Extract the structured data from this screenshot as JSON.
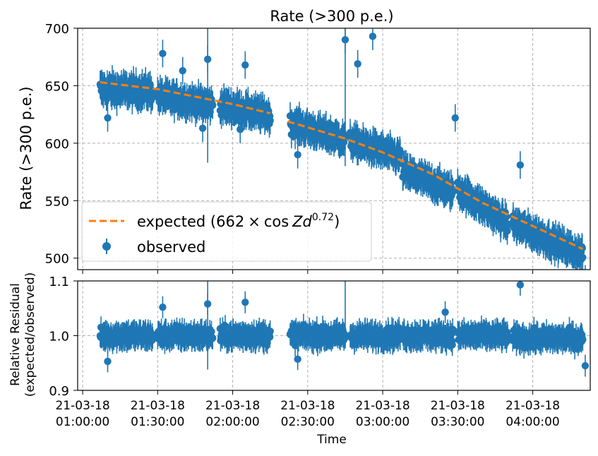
{
  "chart_data": [
    {
      "type": "scatter",
      "title": "Rate (>300 p.e.)",
      "xlabel": "",
      "ylabel": "Rate (>300 p.e.)",
      "ylim": [
        490,
        700
      ],
      "yticks": [
        500,
        550,
        600,
        650,
        700
      ],
      "xlim": [
        "21-03-18 00:58:00",
        "21-03-18 04:23:00"
      ],
      "grid": true,
      "legend_position": "lower-left",
      "series": [
        {
          "name": "expected (662 × cos Zd^0.72)",
          "style": "dashed-line",
          "color": "#ff7f0e",
          "x": [
            "21-03-18 01:00:00",
            "21-03-18 01:20:00",
            "21-03-18 01:40:00",
            "21-03-18 02:00:00",
            "21-03-18 02:20:00",
            "21-03-18 02:40:00",
            "21-03-18 03:00:00",
            "21-03-18 03:20:00",
            "21-03-18 03:40:00",
            "21-03-18 04:00:00"
          ],
          "y": [
            653,
            649,
            641,
            633,
            623,
            612,
            597,
            573,
            548,
            520
          ],
          "segments": [
            {
              "x": [
                "21-03-18 01:07:00",
                "21-03-18 01:30:00",
                "21-03-18 02:00:00",
                "21-03-18 02:15:00"
              ],
              "y": [
                653,
                647,
                634,
                626
              ]
            },
            {
              "x": [
                "21-03-18 02:22:00",
                "21-03-18 02:45:00",
                "21-03-18 03:00:00",
                "21-03-18 03:20:00",
                "21-03-18 03:40:00",
                "21-03-18 04:00:00",
                "21-03-18 04:20:00"
              ],
              "y": [
                619,
                604,
                592,
                573,
                548,
                528,
                508
              ]
            }
          ]
        },
        {
          "name": "observed",
          "style": "markers-with-errorbars",
          "color": "#1f77b4",
          "clusters": [
            {
              "x_start": "21-03-18 01:07:00",
              "x_end": "21-03-18 01:28:00",
              "y_center_start": 647,
              "y_center_end": 645,
              "spread": 18
            },
            {
              "x_start": "21-03-18 01:30:00",
              "x_end": "21-03-18 01:52:00",
              "y_center_start": 641,
              "y_center_end": 633,
              "spread": 16
            },
            {
              "x_start": "21-03-18 01:55:00",
              "x_end": "21-03-18 02:15:00",
              "y_center_start": 633,
              "y_center_end": 624,
              "spread": 16
            },
            {
              "x_start": "21-03-18 02:23:00",
              "x_end": "21-03-18 02:45:00",
              "y_center_start": 617,
              "y_center_end": 603,
              "spread": 16
            },
            {
              "x_start": "21-03-18 02:47:00",
              "x_end": "21-03-18 03:07:00",
              "y_center_start": 602,
              "y_center_end": 588,
              "spread": 16
            },
            {
              "x_start": "21-03-18 03:08:00",
              "x_end": "21-03-18 03:28:00",
              "y_center_start": 576,
              "y_center_end": 558,
              "spread": 16
            },
            {
              "x_start": "21-03-18 03:30:00",
              "x_end": "21-03-18 03:50:00",
              "y_center_start": 560,
              "y_center_end": 530,
              "spread": 16
            },
            {
              "x_start": "21-03-18 03:52:00",
              "x_end": "21-03-18 04:20:00",
              "y_center_start": 530,
              "y_center_end": 503,
              "spread": 16
            }
          ],
          "outliers": [
            {
              "x": "21-03-18 01:10:00",
              "y": 622
            },
            {
              "x": "21-03-18 01:32:00",
              "y": 678
            },
            {
              "x": "21-03-18 01:40:00",
              "y": 663
            },
            {
              "x": "21-03-18 01:50:00",
              "y": 673
            },
            {
              "x": "21-03-18 01:48:00",
              "y": 613
            },
            {
              "x": "21-03-18 02:05:00",
              "y": 668
            },
            {
              "x": "21-03-18 02:03:00",
              "y": 612
            },
            {
              "x": "21-03-18 02:26:00",
              "y": 590
            },
            {
              "x": "21-03-18 02:45:00",
              "y": 690
            },
            {
              "x": "21-03-18 02:50:00",
              "y": 669
            },
            {
              "x": "21-03-18 02:56:00",
              "y": 693
            },
            {
              "x": "21-03-18 03:29:00",
              "y": 622
            },
            {
              "x": "21-03-18 03:55:00",
              "y": 581
            },
            {
              "x": "21-03-18 04:21:00",
              "y": 482
            }
          ]
        }
      ]
    },
    {
      "type": "scatter",
      "title": "",
      "xlabel": "Time",
      "ylabel": "Relative Residual (expected/observed)",
      "ylabel_lines": [
        "Relative Residual",
        "(expected/observed)"
      ],
      "ylim": [
        0.9,
        1.1
      ],
      "yticks": [
        0.9,
        1.0,
        1.1
      ],
      "ytick_labels": [
        "0.9",
        "1.0",
        "1.1"
      ],
      "xlim": [
        "21-03-18 00:58:00",
        "21-03-18 04:23:00"
      ],
      "xtick_values": [
        "21-03-18 01:00:00",
        "21-03-18 01:30:00",
        "21-03-18 02:00:00",
        "21-03-18 02:30:00",
        "21-03-18 03:00:00",
        "21-03-18 03:30:00",
        "21-03-18 04:00:00"
      ],
      "xticks": [
        {
          "line1": "21-03-18",
          "line2": "01:00:00"
        },
        {
          "line1": "21-03-18",
          "line2": "01:30:00"
        },
        {
          "line1": "21-03-18",
          "line2": "02:00:00"
        },
        {
          "line1": "21-03-18",
          "line2": "02:30:00"
        },
        {
          "line1": "21-03-18",
          "line2": "03:00:00"
        },
        {
          "line1": "21-03-18",
          "line2": "03:30:00"
        },
        {
          "line1": "21-03-18",
          "line2": "04:00:00"
        }
      ],
      "grid": true,
      "series": [
        {
          "name": "",
          "style": "markers-with-errorbars",
          "color": "#1f77b4",
          "clusters": [
            {
              "x_start": "21-03-18 01:07:00",
              "x_end": "21-03-18 01:28:00",
              "y_center": 1.0,
              "spread": 0.03
            },
            {
              "x_start": "21-03-18 01:30:00",
              "x_end": "21-03-18 01:52:00",
              "y_center": 1.0,
              "spread": 0.03
            },
            {
              "x_start": "21-03-18 01:55:00",
              "x_end": "21-03-18 02:15:00",
              "y_center": 1.0,
              "spread": 0.03
            },
            {
              "x_start": "21-03-18 02:23:00",
              "x_end": "21-03-18 02:45:00",
              "y_center": 1.0,
              "spread": 0.03
            },
            {
              "x_start": "21-03-18 02:47:00",
              "x_end": "21-03-18 03:07:00",
              "y_center": 1.0,
              "spread": 0.03
            },
            {
              "x_start": "21-03-18 03:08:00",
              "x_end": "21-03-18 03:28:00",
              "y_center": 1.0,
              "spread": 0.03
            },
            {
              "x_start": "21-03-18 03:30:00",
              "x_end": "21-03-18 03:50:00",
              "y_center": 1.0,
              "spread": 0.03
            },
            {
              "x_start": "21-03-18 03:52:00",
              "x_end": "21-03-18 04:20:00",
              "y_center": 0.995,
              "spread": 0.03
            }
          ],
          "outliers": [
            {
              "x": "21-03-18 01:10:00",
              "y": 0.953
            },
            {
              "x": "21-03-18 01:32:00",
              "y": 1.052
            },
            {
              "x": "21-03-18 01:50:00",
              "y": 1.058
            },
            {
              "x": "21-03-18 02:05:00",
              "y": 1.061
            },
            {
              "x": "21-03-18 02:26:00",
              "y": 0.957
            },
            {
              "x": "21-03-18 03:25:00",
              "y": 1.043
            },
            {
              "x": "21-03-18 03:55:00",
              "y": 1.093
            },
            {
              "x": "21-03-18 04:21:00",
              "y": 0.945
            }
          ]
        }
      ]
    }
  ],
  "legend": {
    "expected_prefix": "expected (662",
    "times": "×",
    "cos": "cos",
    "zd": "Zd",
    "exponent": "0.72",
    "close": ")",
    "observed": "observed"
  },
  "colors": {
    "observed": "#1f77b4",
    "expected": "#ff7f0e",
    "grid": "#b0b0b0"
  }
}
